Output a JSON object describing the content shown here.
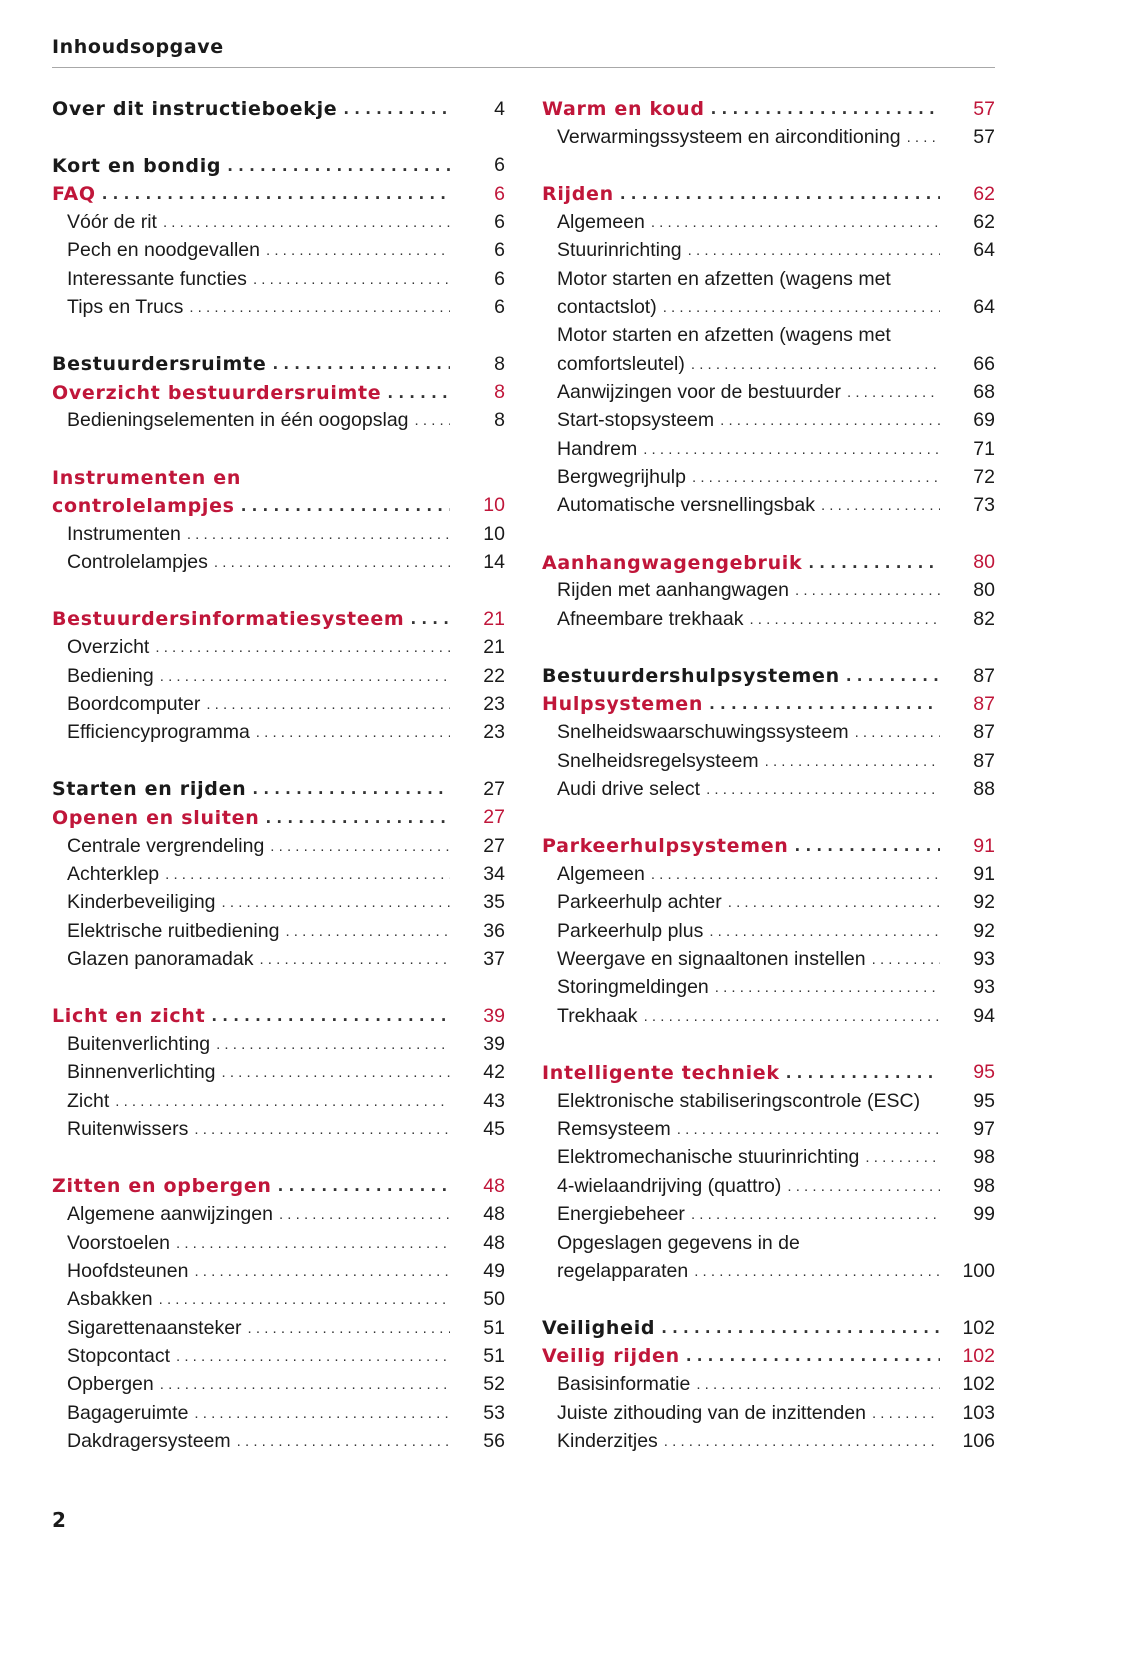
{
  "header": {
    "title": "Inhoudsopgave"
  },
  "page_number": "2",
  "colors": {
    "accent_red": "#c0163a",
    "text": "#1a1a1a",
    "rule": "#a8a8a8"
  },
  "columns": [
    [
      {
        "line": 0,
        "type": "bold",
        "text": "Over dit instructieboekje",
        "page": "4"
      },
      {
        "line": 2,
        "type": "bold",
        "text": "Kort en bondig",
        "page": "6"
      },
      {
        "line": 3,
        "type": "red",
        "text": "FAQ",
        "page": "6"
      },
      {
        "line": 4,
        "type": "sub",
        "text": "Vóór de rit",
        "page": "6"
      },
      {
        "line": 5,
        "type": "sub",
        "text": "Pech en noodgevallen",
        "page": "6"
      },
      {
        "line": 6,
        "type": "sub",
        "text": "Interessante functies",
        "page": "6"
      },
      {
        "line": 7,
        "type": "sub",
        "text": "Tips en Trucs",
        "page": "6"
      },
      {
        "line": 9,
        "type": "bold",
        "text": "Bestuurdersruimte",
        "page": "8"
      },
      {
        "line": 10,
        "type": "red",
        "text": "Overzicht bestuurdersruimte",
        "page": "8"
      },
      {
        "line": 11,
        "type": "sub",
        "text": "Bedieningselementen in één oogopslag",
        "page": "8"
      },
      {
        "line": 13,
        "type": "red",
        "wrap": true,
        "text": "Instrumenten en"
      },
      {
        "line": 14,
        "type": "red",
        "text": "controlelampjes",
        "page": "10"
      },
      {
        "line": 15,
        "type": "sub",
        "text": "Instrumenten",
        "page": "10"
      },
      {
        "line": 16,
        "type": "sub",
        "text": "Controlelampjes",
        "page": "14"
      },
      {
        "line": 18,
        "type": "red",
        "text": "Bestuurdersinformatiesysteem",
        "page": "21"
      },
      {
        "line": 19,
        "type": "sub",
        "text": "Overzicht",
        "page": "21"
      },
      {
        "line": 20,
        "type": "sub",
        "text": "Bediening",
        "page": "22"
      },
      {
        "line": 21,
        "type": "sub",
        "text": "Boordcomputer",
        "page": "23"
      },
      {
        "line": 22,
        "type": "sub",
        "text": "Efficiencyprogramma",
        "page": "23"
      },
      {
        "line": 24,
        "type": "bold",
        "text": "Starten en rijden",
        "page": "27"
      },
      {
        "line": 25,
        "type": "red",
        "text": "Openen en sluiten",
        "page": "27"
      },
      {
        "line": 26,
        "type": "sub",
        "text": "Centrale vergrendeling",
        "page": "27"
      },
      {
        "line": 27,
        "type": "sub",
        "text": "Achterklep",
        "page": "34"
      },
      {
        "line": 28,
        "type": "sub",
        "text": "Kinderbeveiliging",
        "page": "35"
      },
      {
        "line": 29,
        "type": "sub",
        "text": "Elektrische ruitbediening",
        "page": "36"
      },
      {
        "line": 30,
        "type": "sub",
        "text": "Glazen panoramadak",
        "page": "37"
      },
      {
        "line": 32,
        "type": "red",
        "text": "Licht en zicht",
        "page": "39"
      },
      {
        "line": 33,
        "type": "sub",
        "text": "Buitenverlichting",
        "page": "39"
      },
      {
        "line": 34,
        "type": "sub",
        "text": "Binnenverlichting",
        "page": "42"
      },
      {
        "line": 35,
        "type": "sub",
        "text": "Zicht",
        "page": "43"
      },
      {
        "line": 36,
        "type": "sub",
        "text": "Ruitenwissers",
        "page": "45"
      },
      {
        "line": 38,
        "type": "red",
        "text": "Zitten en opbergen",
        "page": "48"
      },
      {
        "line": 39,
        "type": "sub",
        "text": "Algemene aanwijzingen",
        "page": "48"
      },
      {
        "line": 40,
        "type": "sub",
        "text": "Voorstoelen",
        "page": "48"
      },
      {
        "line": 41,
        "type": "sub",
        "text": "Hoofdsteunen",
        "page": "49"
      },
      {
        "line": 42,
        "type": "sub",
        "text": "Asbakken",
        "page": "50"
      },
      {
        "line": 43,
        "type": "sub",
        "text": "Sigarettenaansteker",
        "page": "51"
      },
      {
        "line": 44,
        "type": "sub",
        "text": "Stopcontact",
        "page": "51"
      },
      {
        "line": 45,
        "type": "sub",
        "text": "Opbergen",
        "page": "52"
      },
      {
        "line": 46,
        "type": "sub",
        "text": "Bagageruimte",
        "page": "53"
      },
      {
        "line": 47,
        "type": "sub",
        "text": "Dakdragersysteem",
        "page": "56"
      }
    ],
    [
      {
        "line": 0,
        "type": "red",
        "text": "Warm en koud",
        "page": "57"
      },
      {
        "line": 1,
        "type": "sub",
        "text": "Verwarmingssysteem en airconditioning",
        "page": "57"
      },
      {
        "line": 3,
        "type": "red",
        "text": "Rijden",
        "page": "62"
      },
      {
        "line": 4,
        "type": "sub",
        "text": "Algemeen",
        "page": "62"
      },
      {
        "line": 5,
        "type": "sub",
        "text": "Stuurinrichting",
        "page": "64"
      },
      {
        "line": 6,
        "type": "sub",
        "wrap": true,
        "text": "Motor starten en afzetten (wagens met"
      },
      {
        "line": 7,
        "type": "sub",
        "text": "contactslot)",
        "page": "64"
      },
      {
        "line": 8,
        "type": "sub",
        "wrap": true,
        "text": "Motor starten en afzetten (wagens met"
      },
      {
        "line": 9,
        "type": "sub",
        "text": "comfortsleutel)",
        "page": "66"
      },
      {
        "line": 10,
        "type": "sub",
        "text": "Aanwijzingen voor de bestuurder",
        "page": "68"
      },
      {
        "line": 11,
        "type": "sub",
        "text": "Start-stopsysteem",
        "page": "69"
      },
      {
        "line": 12,
        "type": "sub",
        "text": "Handrem",
        "page": "71"
      },
      {
        "line": 13,
        "type": "sub",
        "text": "Bergwegrijhulp",
        "page": "72"
      },
      {
        "line": 14,
        "type": "sub",
        "text": "Automatische versnellingsbak",
        "page": "73"
      },
      {
        "line": 16,
        "type": "red",
        "text": "Aanhangwagengebruik",
        "page": "80"
      },
      {
        "line": 17,
        "type": "sub",
        "text": "Rijden met aanhangwagen",
        "page": "80"
      },
      {
        "line": 18,
        "type": "sub",
        "text": "Afneembare trekhaak",
        "page": "82"
      },
      {
        "line": 20,
        "type": "bold",
        "text": "Bestuurdershulpsystemen",
        "page": "87"
      },
      {
        "line": 21,
        "type": "red",
        "text": "Hulpsystemen",
        "page": "87"
      },
      {
        "line": 22,
        "type": "sub",
        "text": "Snelheidswaarschuwingssysteem",
        "page": "87"
      },
      {
        "line": 23,
        "type": "sub",
        "text": "Snelheidsregelsysteem",
        "page": "87"
      },
      {
        "line": 24,
        "type": "sub",
        "text": "Audi drive select",
        "page": "88"
      },
      {
        "line": 26,
        "type": "red",
        "text": "Parkeerhulpsystemen",
        "page": "91"
      },
      {
        "line": 27,
        "type": "sub",
        "text": "Algemeen",
        "page": "91"
      },
      {
        "line": 28,
        "type": "sub",
        "text": "Parkeerhulp achter",
        "page": "92"
      },
      {
        "line": 29,
        "type": "sub",
        "text": "Parkeerhulp plus",
        "page": "92"
      },
      {
        "line": 30,
        "type": "sub",
        "text": "Weergave en signaaltonen instellen",
        "page": "93"
      },
      {
        "line": 31,
        "type": "sub",
        "text": "Storingmeldingen",
        "page": "93"
      },
      {
        "line": 32,
        "type": "sub",
        "text": "Trekhaak",
        "page": "94"
      },
      {
        "line": 34,
        "type": "red",
        "text": "Intelligente techniek",
        "page": "95"
      },
      {
        "line": 35,
        "type": "sub",
        "text": "Elektronische stabiliseringscontrole (ESC)",
        "page": "95",
        "nolead": true
      },
      {
        "line": 36,
        "type": "sub",
        "text": "Remsysteem",
        "page": "97"
      },
      {
        "line": 37,
        "type": "sub",
        "text": "Elektromechanische stuurinrichting",
        "page": "98"
      },
      {
        "line": 38,
        "type": "sub",
        "text": "4-wielaandrijving (quattro)",
        "page": "98"
      },
      {
        "line": 39,
        "type": "sub",
        "text": "Energiebeheer",
        "page": "99"
      },
      {
        "line": 40,
        "type": "sub",
        "wrap": true,
        "text": "Opgeslagen gegevens in de"
      },
      {
        "line": 41,
        "type": "sub",
        "text": "regelapparaten",
        "page": "100"
      },
      {
        "line": 43,
        "type": "bold",
        "text": "Veiligheid",
        "page": "102"
      },
      {
        "line": 44,
        "type": "red",
        "text": "Veilig rijden",
        "page": "102"
      },
      {
        "line": 45,
        "type": "sub",
        "text": "Basisinformatie",
        "page": "102"
      },
      {
        "line": 46,
        "type": "sub",
        "text": "Juiste zithouding van de inzittenden",
        "page": "103"
      },
      {
        "line": 47,
        "type": "sub",
        "text": "Kinderzitjes",
        "page": "106"
      }
    ]
  ]
}
